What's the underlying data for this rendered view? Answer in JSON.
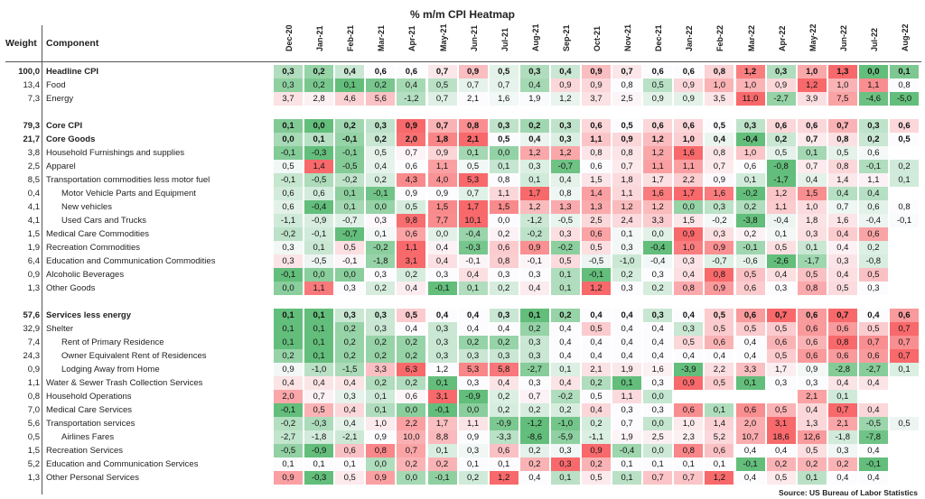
{
  "chart_data": {
    "type": "heatmap",
    "title": "% m/m CPI Heatmap",
    "header_weight": "Weight",
    "header_component": "Component",
    "months": [
      "Dec-20",
      "Jan-21",
      "Feb-21",
      "Mar-21",
      "Apr-21",
      "May-21",
      "Jun-21",
      "Jul-21",
      "Aug-21",
      "Sep-21",
      "Oct-21",
      "Nov-21",
      "Dec-21",
      "Jan-22",
      "Feb-22",
      "Mar-22",
      "Apr-22",
      "May-22",
      "Jun-22",
      "Jul-22",
      "Aug-22"
    ],
    "rows": [
      {
        "weight": "100,0",
        "name": "Headline CPI",
        "bold": true,
        "indent": 0,
        "values": [
          "0,3",
          "0,2",
          "0,4",
          "0,6",
          "0,6",
          "0,7",
          "0,9",
          "0,5",
          "0,3",
          "0,4",
          "0,9",
          "0,7",
          "0,6",
          "0,6",
          "0,8",
          "1,2",
          "0,3",
          "1,0",
          "1,3",
          "0,0",
          "0,1"
        ]
      },
      {
        "weight": "13,4",
        "name": "Food",
        "bold": false,
        "indent": 0,
        "values": [
          "0,3",
          "0,2",
          "0,1",
          "0,2",
          "0,4",
          "0,5",
          "0,7",
          "0,7",
          "0,4",
          "0,9",
          "0,9",
          "0,8",
          "0,5",
          "0,9",
          "1,0",
          "1,0",
          "0,9",
          "1,2",
          "1,0",
          "1,1",
          "0,8"
        ]
      },
      {
        "weight": "7,3",
        "name": "Energy",
        "bold": false,
        "indent": 0,
        "values": [
          "3,7",
          "2,8",
          "4,6",
          "5,6",
          "-1,2",
          "0,7",
          "2,1",
          "1,6",
          "1,9",
          "1,2",
          "3,7",
          "2,5",
          "0,9",
          "0,9",
          "3,5",
          "11,0",
          "-2,7",
          "3,9",
          "7,5",
          "-4,6",
          "-5,0"
        ]
      },
      {
        "weight": "",
        "name": "",
        "bold": false,
        "indent": 0,
        "values": []
      },
      {
        "weight": "79,3",
        "name": "Core CPI",
        "bold": true,
        "indent": 0,
        "values": [
          "0,1",
          "0,0",
          "0,2",
          "0,3",
          "0,9",
          "0,7",
          "0,8",
          "0,3",
          "0,2",
          "0,3",
          "0,6",
          "0,5",
          "0,6",
          "0,6",
          "0,5",
          "0,3",
          "0,6",
          "0,6",
          "0,7",
          "0,3",
          "0,6"
        ]
      },
      {
        "weight": "21,7",
        "name": "Core Goods",
        "bold": true,
        "indent": 0,
        "values": [
          "0,0",
          "0,1",
          "-0,1",
          "0,2",
          "2,0",
          "1,8",
          "2,1",
          "0,5",
          "0,4",
          "0,3",
          "1,1",
          "0,9",
          "1,2",
          "1,0",
          "0,4",
          "-0,4",
          "0,2",
          "0,7",
          "0,8",
          "0,2",
          "0,5"
        ]
      },
      {
        "weight": "3,8",
        "name": "Household Furnishings and supplies",
        "bold": false,
        "indent": 0,
        "values": [
          "-0,1",
          "-0,3",
          "-0,1",
          "0,5",
          "0,7",
          "0,9",
          "0,1",
          "0,0",
          "1,2",
          "1,2",
          "0,8",
          "0,8",
          "1,2",
          "1,6",
          "0,8",
          "1,0",
          "0,5",
          "0,1",
          "0,5",
          "0,6",
          ""
        ]
      },
      {
        "weight": "2,5",
        "name": "Apparel",
        "bold": false,
        "indent": 0,
        "values": [
          "0,5",
          "1,4",
          "-0,5",
          "0,4",
          "0,6",
          "1,1",
          "0,5",
          "0,1",
          "0,3",
          "-0,7",
          "0,6",
          "0,7",
          "1,1",
          "1,1",
          "0,7",
          "0,6",
          "-0,8",
          "0,7",
          "0,8",
          "-0,1",
          "0,2"
        ]
      },
      {
        "weight": "8,5",
        "name": "Transportation commodities less motor fuel",
        "bold": false,
        "indent": 0,
        "values": [
          "-0,1",
          "-0,5",
          "-0,2",
          "0,2",
          "4,3",
          "4,0",
          "5,3",
          "0,8",
          "0,1",
          "0,4",
          "1,5",
          "1,8",
          "1,7",
          "2,2",
          "0,9",
          "0,1",
          "-1,7",
          "0,4",
          "1,4",
          "1,1",
          "0,1"
        ]
      },
      {
        "weight": "0,4",
        "name": "Motor Vehicle Parts and Equipment",
        "bold": false,
        "indent": 1,
        "values": [
          "0,6",
          "0,6",
          "0,1",
          "-0,1",
          "0,9",
          "0,9",
          "0,7",
          "1,1",
          "1,7",
          "0,8",
          "1,4",
          "1,1",
          "1,6",
          "1,7",
          "1,6",
          "-0,2",
          "1,2",
          "1,5",
          "0,4",
          "0,4",
          ""
        ]
      },
      {
        "weight": "4,1",
        "name": "New vehicles",
        "bold": false,
        "indent": 1,
        "values": [
          "0,6",
          "-0,4",
          "0,1",
          "0,0",
          "0,5",
          "1,5",
          "1,7",
          "1,5",
          "1,2",
          "1,3",
          "1,3",
          "1,2",
          "1,2",
          "0,0",
          "0,3",
          "0,2",
          "1,1",
          "1,0",
          "0,7",
          "0,6",
          "0,8"
        ]
      },
      {
        "weight": "4,1",
        "name": "Used Cars and Trucks",
        "bold": false,
        "indent": 1,
        "values": [
          "-1,1",
          "-0,9",
          "-0,7",
          "0,3",
          "9,8",
          "7,7",
          "10,1",
          "0,0",
          "-1,2",
          "-0,5",
          "2,5",
          "2,4",
          "3,3",
          "1,5",
          "-0,2",
          "-3,8",
          "-0,4",
          "1,8",
          "1,6",
          "-0,4",
          "-0,1"
        ]
      },
      {
        "weight": "1,5",
        "name": "Medical Care Commodities",
        "bold": false,
        "indent": 0,
        "values": [
          "-0,2",
          "-0,1",
          "-0,7",
          "0,1",
          "0,6",
          "0,0",
          "-0,4",
          "0,2",
          "-0,2",
          "0,3",
          "0,6",
          "0,1",
          "0,0",
          "0,9",
          "0,3",
          "0,2",
          "0,1",
          "0,3",
          "0,4",
          "0,6",
          ""
        ]
      },
      {
        "weight": "1,9",
        "name": "Recreation Commodities",
        "bold": false,
        "indent": 0,
        "values": [
          "0,3",
          "0,1",
          "0,5",
          "-0,2",
          "1,1",
          "0,4",
          "-0,3",
          "0,6",
          "0,9",
          "-0,2",
          "0,5",
          "0,3",
          "-0,4",
          "1,0",
          "0,9",
          "-0,1",
          "0,5",
          "0,1",
          "0,4",
          "0,2",
          ""
        ]
      },
      {
        "weight": "6,4",
        "name": "Education and Communication Commodities",
        "bold": false,
        "indent": 0,
        "values": [
          "0,3",
          "-0,5",
          "-0,1",
          "-1,8",
          "3,1",
          "0,4",
          "-0,1",
          "0,8",
          "-0,1",
          "0,5",
          "-0,5",
          "-1,0",
          "-0,4",
          "0,3",
          "-0,7",
          "-0,6",
          "-2,6",
          "-1,7",
          "0,3",
          "-0,8",
          ""
        ]
      },
      {
        "weight": "0,9",
        "name": "Alcoholic Beverages",
        "bold": false,
        "indent": 0,
        "values": [
          "-0,1",
          "0,0",
          "0,0",
          "0,3",
          "0,2",
          "0,3",
          "0,4",
          "0,3",
          "0,3",
          "0,1",
          "-0,1",
          "0,2",
          "0,3",
          "0,4",
          "0,8",
          "0,5",
          "0,4",
          "0,5",
          "0,4",
          "0,5",
          ""
        ]
      },
      {
        "weight": "1,3",
        "name": "Other Goods",
        "bold": false,
        "indent": 0,
        "values": [
          "0,0",
          "1,1",
          "0,3",
          "0,2",
          "0,4",
          "-0,1",
          "0,1",
          "0,2",
          "0,4",
          "0,1",
          "1,2",
          "0,3",
          "0,2",
          "0,8",
          "0,9",
          "0,6",
          "0,3",
          "0,8",
          "0,5",
          "0,3",
          ""
        ]
      },
      {
        "weight": "",
        "name": "",
        "bold": false,
        "indent": 0,
        "values": []
      },
      {
        "weight": "57,6",
        "name": "Services less energy",
        "bold": true,
        "indent": 0,
        "values": [
          "0,1",
          "0,1",
          "0,3",
          "0,3",
          "0,5",
          "0,4",
          "0,4",
          "0,3",
          "0,1",
          "0,2",
          "0,4",
          "0,4",
          "0,3",
          "0,4",
          "0,5",
          "0,6",
          "0,7",
          "0,6",
          "0,7",
          "0,4",
          "0,6"
        ]
      },
      {
        "weight": "32,9",
        "name": "Shelter",
        "bold": false,
        "indent": 0,
        "values": [
          "0,1",
          "0,1",
          "0,2",
          "0,3",
          "0,4",
          "0,3",
          "0,4",
          "0,4",
          "0,2",
          "0,4",
          "0,5",
          "0,4",
          "0,4",
          "0,3",
          "0,5",
          "0,5",
          "0,5",
          "0,6",
          "0,6",
          "0,5",
          "0,7"
        ]
      },
      {
        "weight": "7,4",
        "name": "Rent of Primary Residence",
        "bold": false,
        "indent": 1,
        "values": [
          "0,1",
          "0,1",
          "0,2",
          "0,2",
          "0,2",
          "0,3",
          "0,2",
          "0,2",
          "0,3",
          "0,4",
          "0,4",
          "0,4",
          "0,4",
          "0,5",
          "0,6",
          "0,4",
          "0,6",
          "0,6",
          "0,8",
          "0,7",
          "0,7"
        ]
      },
      {
        "weight": "24,3",
        "name": "Owner Equivalent Rent of Residences",
        "bold": false,
        "indent": 1,
        "values": [
          "0,2",
          "0,1",
          "0,2",
          "0,2",
          "0,2",
          "0,3",
          "0,3",
          "0,3",
          "0,3",
          "0,4",
          "0,4",
          "0,4",
          "0,4",
          "0,4",
          "0,4",
          "0,4",
          "0,5",
          "0,6",
          "0,6",
          "0,6",
          "0,7"
        ]
      },
      {
        "weight": "0,9",
        "name": "Lodging Away from Home",
        "bold": false,
        "indent": 1,
        "values": [
          "0,9",
          "-1,0",
          "-1,5",
          "3,3",
          "6,3",
          "1,2",
          "5,3",
          "5,8",
          "-2,7",
          "0,1",
          "2,1",
          "1,9",
          "1,6",
          "-3,9",
          "2,2",
          "3,3",
          "1,7",
          "0,9",
          "-2,8",
          "-2,7",
          "0,1"
        ]
      },
      {
        "weight": "1,1",
        "name": "Water & Sewer Trash Collection Services",
        "bold": false,
        "indent": 0,
        "values": [
          "0,4",
          "0,4",
          "0,4",
          "0,2",
          "0,2",
          "0,1",
          "0,3",
          "0,4",
          "0,3",
          "0,4",
          "0,2",
          "0,1",
          "0,3",
          "0,9",
          "0,5",
          "0,1",
          "0,3",
          "0,3",
          "0,4",
          "0,4",
          ""
        ]
      },
      {
        "weight": "0,8",
        "name": "Household Operations",
        "bold": false,
        "indent": 0,
        "values": [
          "2,0",
          "0,7",
          "0,3",
          "0,1",
          "0,6",
          "3,1",
          "-0,9",
          "0,2",
          "0,7",
          "-0,2",
          "0,5",
          "1,1",
          "0,0",
          "",
          "",
          "",
          "",
          "2,1",
          "0,1",
          "",
          ""
        ]
      },
      {
        "weight": "7,0",
        "name": "Medical Care Services",
        "bold": false,
        "indent": 0,
        "values": [
          "-0,1",
          "0,5",
          "0,4",
          "0,1",
          "0,0",
          "-0,1",
          "0,0",
          "0,2",
          "0,2",
          "0,2",
          "0,4",
          "0,3",
          "0,3",
          "0,6",
          "0,1",
          "0,6",
          "0,5",
          "0,4",
          "0,7",
          "0,4",
          ""
        ]
      },
      {
        "weight": "5,6",
        "name": "Transportation services",
        "bold": false,
        "indent": 0,
        "values": [
          "-0,2",
          "-0,3",
          "0,4",
          "1,0",
          "2,2",
          "1,7",
          "1,1",
          "-0,9",
          "-1,2",
          "-1,0",
          "0,2",
          "0,7",
          "0,0",
          "1,0",
          "1,4",
          "2,0",
          "3,1",
          "1,3",
          "2,1",
          "-0,5",
          "0,5"
        ]
      },
      {
        "weight": "0,5",
        "name": "Airlines Fares",
        "bold": false,
        "indent": 1,
        "values": [
          "-2,7",
          "-1,8",
          "-2,1",
          "0,9",
          "10,0",
          "8,8",
          "0,9",
          "-3,3",
          "-8,6",
          "-5,9",
          "-1,1",
          "1,9",
          "2,5",
          "2,3",
          "5,2",
          "10,7",
          "18,6",
          "12,6",
          "-1,8",
          "-7,8",
          ""
        ]
      },
      {
        "weight": "1,5",
        "name": "Recreation Services",
        "bold": false,
        "indent": 0,
        "values": [
          "-0,5",
          "-0,9",
          "0,6",
          "0,8",
          "0,7",
          "0,1",
          "0,3",
          "0,6",
          "0,2",
          "0,3",
          "0,9",
          "-0,4",
          "0,0",
          "0,8",
          "0,6",
          "0,4",
          "0,4",
          "0,5",
          "0,3",
          "0,4",
          ""
        ]
      },
      {
        "weight": "5,2",
        "name": "Education and Communication Services",
        "bold": false,
        "indent": 0,
        "values": [
          "0,1",
          "0,1",
          "0,1",
          "0,0",
          "0,2",
          "0,2",
          "0,1",
          "0,1",
          "0,2",
          "0,3",
          "0,2",
          "0,1",
          "0,1",
          "0,1",
          "0,1",
          "-0,1",
          "0,2",
          "0,2",
          "0,2",
          "-0,1",
          ""
        ]
      },
      {
        "weight": "1,3",
        "name": "Other Personal Services",
        "bold": false,
        "indent": 0,
        "values": [
          "0,9",
          "-0,3",
          "0,5",
          "0,9",
          "0,0",
          "-0,1",
          "0,2",
          "1,2",
          "0,4",
          "0,1",
          "0,5",
          "0,1",
          "0,7",
          "0,7",
          "1,2",
          "0,4",
          "0,5",
          "0,1",
          "0,4",
          "0,4",
          ""
        ]
      }
    ],
    "colors": {
      "high": "#f8696b",
      "mid": "#fcfcff",
      "low": "#63be7b"
    }
  },
  "source": "Source: US Bureau of Labor Statistics"
}
